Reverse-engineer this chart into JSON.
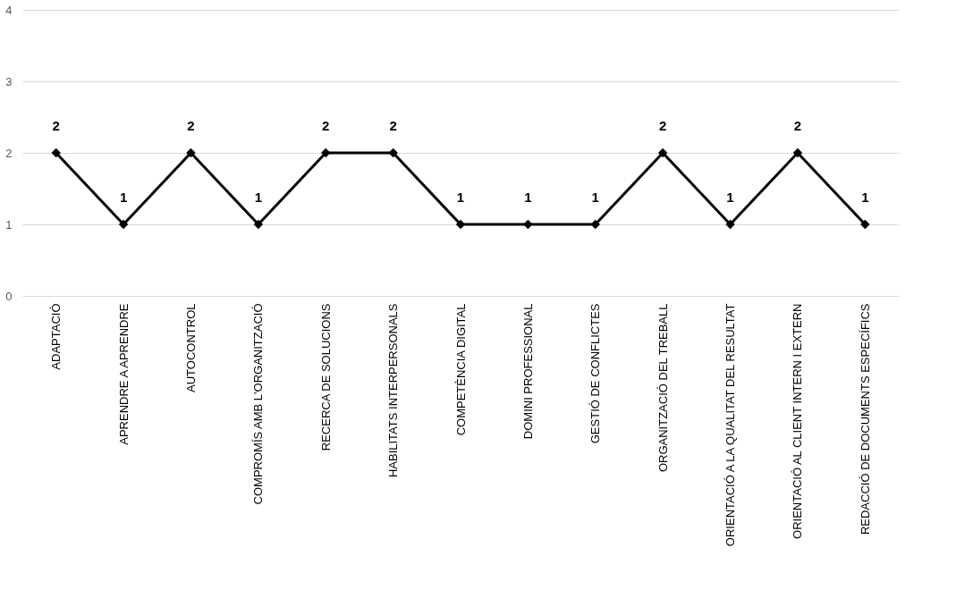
{
  "chart_data": {
    "type": "line",
    "categories": [
      "ADAPTACIÓ",
      "APRENDRE A APRENDRE",
      "AUTOCONTROL",
      "COMPROMÍS AMB L'ORGANITZACIÓ",
      "RECERCA DE SOLUCIONS",
      "HABILITATS INTERPERSONALS",
      "COMPETÈNCIA DIGITAL",
      "DOMINI PROFESSIONAL",
      "GESTIÓ DE CONFLICTES",
      "ORGANITZACIÓ DEL TREBALL",
      "ORIENTACIÓ A LA QUALITAT DEL RESULTAT",
      "ORIENTACIÓ AL CLIENT INTERN I EXTERN",
      "REDACCIÓ DE DOCUMENTS ESPECÍFICS"
    ],
    "series": [
      {
        "color": "#000000",
        "values": [
          2,
          1,
          2,
          1,
          2,
          2,
          1,
          1,
          1,
          2,
          1,
          2,
          1
        ]
      }
    ],
    "ylim": [
      0,
      4
    ],
    "yticks": [
      0,
      1,
      2,
      3,
      4
    ],
    "grid": "y",
    "marker": "diamond",
    "line_style": "solid",
    "data_labels": true
  }
}
